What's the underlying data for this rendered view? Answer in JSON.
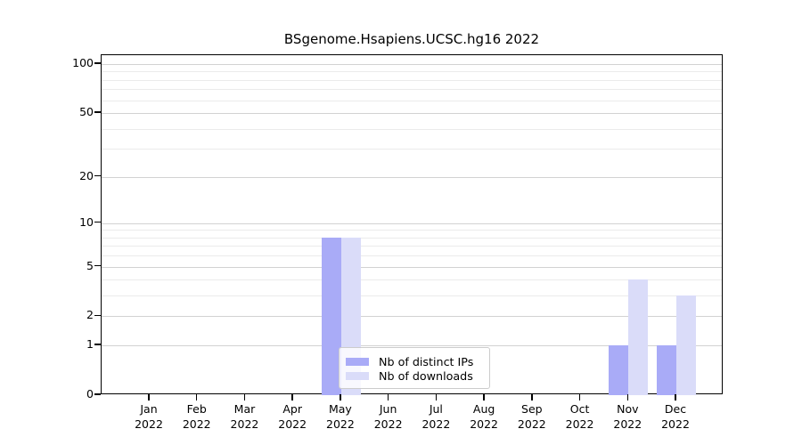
{
  "chart_data": {
    "type": "bar",
    "title": "BSgenome.Hsapiens.UCSC.hg16 2022",
    "x_months": [
      "Jan",
      "Feb",
      "Mar",
      "Apr",
      "May",
      "Jun",
      "Jul",
      "Aug",
      "Sep",
      "Oct",
      "Nov",
      "Dec"
    ],
    "x_year": "2022",
    "series": [
      {
        "name": "Nb of distinct IPs",
        "slug": "distinct-ips",
        "color": "#a9abf7",
        "values": [
          0,
          0,
          0,
          0,
          8,
          0,
          0,
          0,
          0,
          0,
          1,
          1
        ]
      },
      {
        "name": "Nb of downloads",
        "slug": "downloads",
        "color": "#dadcf9",
        "values": [
          0,
          0,
          0,
          0,
          8,
          0,
          0,
          0,
          0,
          0,
          4,
          3
        ]
      }
    ],
    "y_scale": "log10(1+y)",
    "y_ticks": [
      0,
      1,
      2,
      5,
      10,
      20,
      50,
      100
    ],
    "y_tick_labels": [
      "0",
      "1",
      "2",
      "5",
      "10",
      "20",
      "50",
      "100"
    ],
    "y_minor_gridlines": [
      3,
      4,
      6,
      7,
      8,
      9,
      30,
      40,
      60,
      70,
      80,
      90
    ],
    "ylim": [
      0,
      113
    ],
    "grid": "horizontal",
    "legend_position": "inside-bottom-center"
  },
  "colors": {
    "major_gridline": "#d2d2d2",
    "minor_gridline": "#ebebeb",
    "spine": "#000000",
    "legend_border": "#cccccc"
  }
}
